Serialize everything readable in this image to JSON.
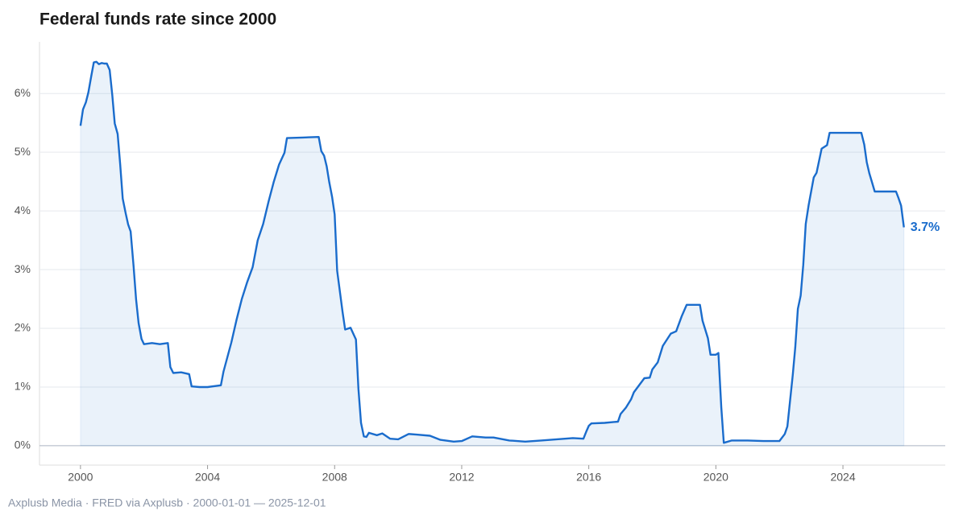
{
  "chart_data": {
    "type": "line",
    "title": "Federal funds rate since 2000",
    "source": "Axplusb Media · FRED via Axplusb · 2000-01-01 — 2025-12-01",
    "x": [
      2000.0,
      2000.08,
      2000.17,
      2000.25,
      2000.33,
      2000.42,
      2000.5,
      2000.58,
      2000.67,
      2000.75,
      2000.83,
      2000.92,
      2001.0,
      2001.08,
      2001.17,
      2001.25,
      2001.33,
      2001.42,
      2001.5,
      2001.58,
      2001.67,
      2001.75,
      2001.83,
      2001.92,
      2002.0,
      2002.25,
      2002.5,
      2002.75,
      2002.83,
      2002.92,
      2003.17,
      2003.42,
      2003.5,
      2003.75,
      2004.0,
      2004.42,
      2004.5,
      2004.75,
      2004.92,
      2005.08,
      2005.25,
      2005.42,
      2005.58,
      2005.75,
      2005.92,
      2006.08,
      2006.25,
      2006.42,
      2006.5,
      2007.0,
      2007.5,
      2007.58,
      2007.67,
      2007.75,
      2007.83,
      2007.92,
      2008.0,
      2008.08,
      2008.25,
      2008.33,
      2008.5,
      2008.67,
      2008.75,
      2008.83,
      2008.92,
      2009.0,
      2009.08,
      2009.33,
      2009.5,
      2009.75,
      2010.0,
      2010.33,
      2010.58,
      2011.0,
      2011.33,
      2011.75,
      2012.0,
      2012.33,
      2012.75,
      2013.0,
      2013.5,
      2014.0,
      2014.5,
      2015.0,
      2015.5,
      2015.83,
      2015.92,
      2016.0,
      2016.08,
      2016.5,
      2016.92,
      2017.0,
      2017.17,
      2017.33,
      2017.42,
      2017.75,
      2017.92,
      2018.0,
      2018.17,
      2018.33,
      2018.58,
      2018.75,
      2018.92,
      2019.08,
      2019.5,
      2019.58,
      2019.75,
      2019.83,
      2020.0,
      2020.08,
      2020.17,
      2020.25,
      2020.5,
      2021.0,
      2021.5,
      2022.0,
      2022.17,
      2022.25,
      2022.42,
      2022.5,
      2022.58,
      2022.67,
      2022.75,
      2022.83,
      2022.92,
      2023.08,
      2023.17,
      2023.33,
      2023.5,
      2023.58,
      2024.58,
      2024.67,
      2024.75,
      2024.83,
      2024.92,
      2025.0,
      2025.67,
      2025.75,
      2025.83,
      2025.88,
      2025.92
    ],
    "series": [
      {
        "name": "Federal funds rate",
        "color": "#1a6ccc",
        "values": [
          5.45,
          5.73,
          5.85,
          6.02,
          6.27,
          6.53,
          6.54,
          6.5,
          6.52,
          6.51,
          6.51,
          6.4,
          5.98,
          5.49,
          5.31,
          4.8,
          4.21,
          3.97,
          3.77,
          3.65,
          3.07,
          2.49,
          2.09,
          1.82,
          1.73,
          1.75,
          1.73,
          1.75,
          1.34,
          1.24,
          1.25,
          1.22,
          1.01,
          1.0,
          1.0,
          1.03,
          1.26,
          1.76,
          2.16,
          2.5,
          2.79,
          3.04,
          3.5,
          3.78,
          4.16,
          4.49,
          4.79,
          4.99,
          5.24,
          5.25,
          5.26,
          5.02,
          4.94,
          4.76,
          4.49,
          4.24,
          3.94,
          2.98,
          2.28,
          1.98,
          2.01,
          1.81,
          0.97,
          0.39,
          0.16,
          0.15,
          0.22,
          0.18,
          0.21,
          0.12,
          0.11,
          0.2,
          0.19,
          0.17,
          0.1,
          0.07,
          0.08,
          0.16,
          0.14,
          0.14,
          0.09,
          0.07,
          0.09,
          0.11,
          0.13,
          0.12,
          0.24,
          0.34,
          0.38,
          0.39,
          0.41,
          0.54,
          0.65,
          0.79,
          0.91,
          1.15,
          1.16,
          1.3,
          1.42,
          1.7,
          1.91,
          1.95,
          2.2,
          2.4,
          2.4,
          2.13,
          1.83,
          1.55,
          1.55,
          1.58,
          0.65,
          0.05,
          0.09,
          0.09,
          0.08,
          0.08,
          0.2,
          0.33,
          1.21,
          1.68,
          2.33,
          2.56,
          3.08,
          3.78,
          4.1,
          4.57,
          4.65,
          5.06,
          5.12,
          5.33,
          5.33,
          5.13,
          4.83,
          4.64,
          4.48,
          4.33,
          4.33,
          4.22,
          4.09,
          3.88,
          3.72
        ],
        "value_labels": [
          null,
          null,
          null,
          null,
          null,
          null,
          null,
          null,
          null,
          null,
          null,
          null,
          null,
          null,
          null,
          null,
          null,
          null,
          null,
          null,
          null,
          null,
          null,
          null,
          null,
          null,
          null,
          null,
          null,
          null,
          null,
          null,
          null,
          null,
          null,
          null,
          null,
          null,
          null,
          null,
          null,
          null,
          null,
          null,
          null,
          null,
          null,
          null,
          null,
          null,
          null,
          null,
          null,
          null,
          null,
          null,
          null,
          null,
          null,
          null,
          null,
          null,
          null,
          null,
          null,
          null,
          null,
          null,
          null,
          null,
          null,
          null,
          null,
          null,
          null,
          null,
          null,
          null,
          null,
          null,
          null,
          null,
          null,
          null,
          null,
          null,
          null,
          null,
          null,
          null,
          null,
          null,
          null,
          null,
          null,
          null,
          null,
          null,
          null,
          null,
          null,
          null,
          null,
          null,
          null,
          null,
          null,
          null,
          null,
          null,
          null,
          null,
          null,
          null,
          null,
          null,
          null,
          null,
          null,
          null,
          null,
          null,
          null,
          null,
          null,
          null,
          null,
          null,
          null,
          null,
          null,
          null,
          null,
          null,
          null,
          null,
          null,
          null,
          null,
          null,
          "3.7%"
        ]
      }
    ],
    "xlim": [
      1998.71,
      2027.22
    ],
    "xticks": [
      2000,
      2004,
      2008,
      2012,
      2016,
      2020,
      2024
    ],
    "ylim": [
      -0.33,
      6.88
    ],
    "yticks": [
      {
        "value": 0,
        "label": "0%"
      },
      {
        "value": 1,
        "label": "1%"
      },
      {
        "value": 2,
        "label": "2%"
      },
      {
        "value": 3,
        "label": "3%"
      },
      {
        "value": 4,
        "label": "4%"
      },
      {
        "value": 5,
        "label": "5%"
      },
      {
        "value": 6,
        "label": "6%"
      }
    ],
    "grid": true
  }
}
